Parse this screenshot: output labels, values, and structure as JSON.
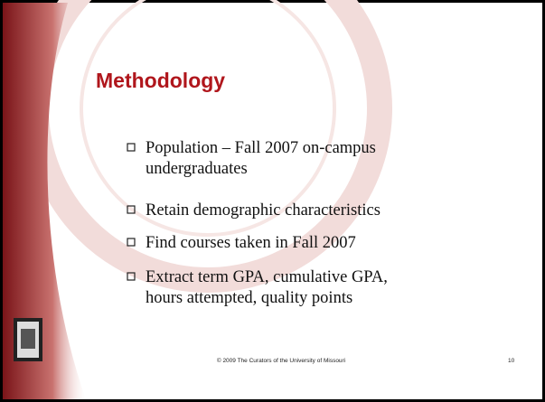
{
  "slide": {
    "title": "Methodology",
    "bullets": [
      {
        "lines": [
          "Population – Fall 2007 on-campus",
          "undergraduates"
        ]
      },
      {
        "lines": [
          "Retain demographic characteristics"
        ]
      },
      {
        "lines": [
          "Find courses taken in Fall 2007"
        ]
      },
      {
        "lines": [
          "Extract term GPA, cumulative GPA,",
          "hours attempted, quality points"
        ]
      }
    ],
    "footer": "© 2009 The Curators of the University of Missouri",
    "page_number": "10"
  }
}
